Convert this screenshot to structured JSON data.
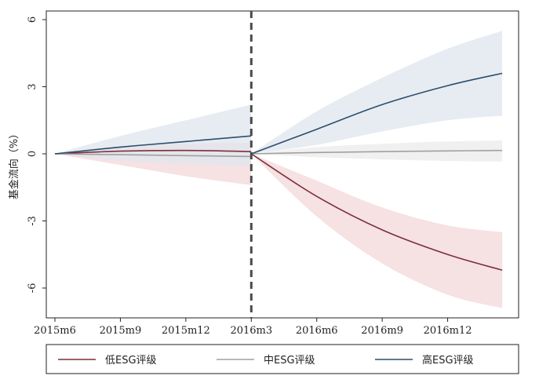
{
  "chart_data": {
    "type": "line",
    "title": "",
    "xlabel": "",
    "ylabel": "基金流向（%）",
    "x_ticks": [
      "2015m6",
      "2015m9",
      "2015m12",
      "2016m3",
      "2016m6",
      "2016m9",
      "2016m12"
    ],
    "y_ticks": [
      "6",
      "3",
      "0",
      "-3",
      "-6"
    ],
    "ylim": [
      -7.2,
      6.3
    ],
    "xlim": [
      0,
      21
    ],
    "event_line": "2016m3",
    "grid": false,
    "legend_position": "bottom",
    "series": [
      {
        "name": "低ESG评级",
        "color": "#7d2f3a",
        "band_color": "#f3d7da",
        "pre": {
          "x": [
            0,
            3,
            6,
            9
          ],
          "y": [
            0,
            0.12,
            0.15,
            0.1
          ],
          "lower": [
            0,
            -0.5,
            -1.0,
            -1.4
          ],
          "upper": [
            0,
            0.35,
            0.45,
            0.5
          ]
        },
        "post": {
          "x": [
            9,
            12,
            15,
            18,
            20.5
          ],
          "y": [
            0,
            -1.9,
            -3.4,
            -4.5,
            -5.2
          ],
          "lower": [
            0,
            -2.8,
            -4.9,
            -6.3,
            -6.9
          ],
          "upper": [
            0,
            -1.2,
            -2.4,
            -3.2,
            -3.5
          ]
        }
      },
      {
        "name": "中ESG评级",
        "color": "#a0a0a0",
        "band_color": "#ebebeb",
        "pre": {
          "x": [
            0,
            3,
            6,
            9
          ],
          "y": [
            0,
            -0.04,
            -0.08,
            -0.12
          ],
          "lower": [
            0,
            -0.1,
            -0.2,
            -0.25
          ],
          "upper": [
            0,
            0.05,
            0.05,
            0.05
          ]
        },
        "post": {
          "x": [
            9,
            12,
            15,
            18,
            20.5
          ],
          "y": [
            0,
            0.06,
            0.1,
            0.13,
            0.15
          ],
          "lower": [
            0,
            -0.15,
            -0.25,
            -0.32,
            -0.35
          ],
          "upper": [
            0,
            0.3,
            0.45,
            0.55,
            0.6
          ]
        }
      },
      {
        "name": "高ESG评级",
        "color": "#2d4d6b",
        "band_color": "#dfe6ed",
        "pre": {
          "x": [
            0,
            3,
            6,
            9
          ],
          "y": [
            0,
            0.3,
            0.55,
            0.8
          ],
          "lower": [
            0,
            -0.3,
            -0.45,
            -0.55
          ],
          "upper": [
            0,
            0.8,
            1.5,
            2.2
          ]
        },
        "post": {
          "x": [
            9,
            12,
            15,
            18,
            20.5
          ],
          "y": [
            0,
            1.1,
            2.2,
            3.05,
            3.6
          ],
          "lower": [
            0,
            0.4,
            1.0,
            1.5,
            1.7
          ],
          "upper": [
            0,
            1.9,
            3.4,
            4.7,
            5.5
          ]
        }
      }
    ]
  }
}
